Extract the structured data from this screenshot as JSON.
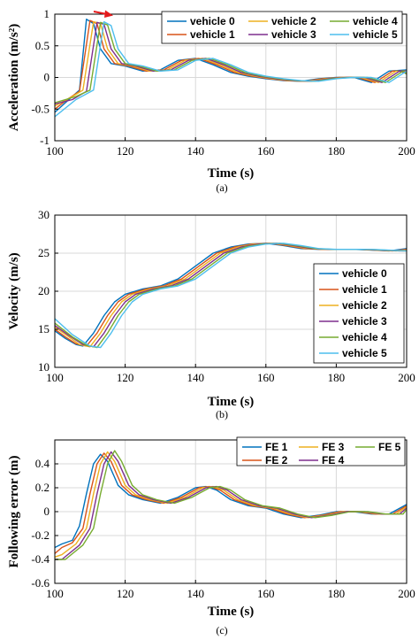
{
  "colors": [
    "#0072BD",
    "#D95319",
    "#EDB120",
    "#7E2F8E",
    "#77AC30",
    "#4DBEEE"
  ],
  "chart_data": [
    {
      "type": "line",
      "caption": "(a)",
      "xlabel": "Time (s)",
      "ylabel": "Acceleration (m/s²)",
      "xlim": [
        100,
        200
      ],
      "ylim": [
        -1,
        1
      ],
      "xticks": [
        "100",
        "120",
        "140",
        "160",
        "180",
        "200"
      ],
      "yticks": [
        "-1",
        "-0.5",
        "0",
        "0.5",
        "1"
      ],
      "grid": true,
      "legend_position": "top-right",
      "legend_columns": 3,
      "annotation": "red arrow pointing right",
      "series": [
        {
          "name": "vehicle 0",
          "x": [
            100,
            104,
            107,
            109,
            111,
            113,
            116,
            120,
            125,
            130,
            135,
            140,
            145,
            150,
            155,
            160,
            165,
            170,
            175,
            180,
            185,
            190,
            195,
            200
          ],
          "values": [
            -0.55,
            -0.35,
            -0.2,
            0.92,
            0.85,
            0.45,
            0.22,
            0.18,
            0.1,
            0.12,
            0.27,
            0.3,
            0.2,
            0.08,
            0.02,
            -0.02,
            -0.05,
            -0.06,
            -0.02,
            0.0,
            0.0,
            -0.08,
            0.1,
            0.12
          ]
        },
        {
          "name": "vehicle 1",
          "x": [
            100,
            104,
            107,
            110,
            112,
            114,
            117,
            121,
            126,
            131,
            136,
            141,
            146,
            151,
            156,
            161,
            166,
            171,
            176,
            181,
            186,
            191,
            196,
            200
          ],
          "values": [
            -0.5,
            -0.33,
            -0.22,
            0.9,
            0.85,
            0.45,
            0.22,
            0.18,
            0.1,
            0.12,
            0.27,
            0.3,
            0.2,
            0.08,
            0.02,
            -0.02,
            -0.05,
            -0.06,
            -0.02,
            0.0,
            0.0,
            -0.08,
            0.1,
            0.1
          ]
        },
        {
          "name": "vehicle 2",
          "x": [
            100,
            105,
            108,
            111,
            113,
            115,
            118,
            122,
            127,
            132,
            137,
            142,
            147,
            152,
            157,
            162,
            167,
            172,
            177,
            182,
            187,
            192,
            197,
            200
          ],
          "values": [
            -0.45,
            -0.3,
            -0.2,
            0.88,
            0.85,
            0.45,
            0.22,
            0.18,
            0.1,
            0.12,
            0.27,
            0.3,
            0.2,
            0.08,
            0.02,
            -0.02,
            -0.05,
            -0.06,
            -0.02,
            0.0,
            0.0,
            -0.08,
            0.1,
            0.08
          ]
        },
        {
          "name": "vehicle 3",
          "x": [
            100,
            105,
            109,
            112,
            114,
            116,
            119,
            123,
            128,
            133,
            138,
            143,
            148,
            153,
            158,
            163,
            168,
            173,
            178,
            183,
            188,
            193,
            198,
            200
          ],
          "values": [
            -0.42,
            -0.35,
            -0.22,
            0.87,
            0.84,
            0.45,
            0.22,
            0.18,
            0.1,
            0.12,
            0.27,
            0.3,
            0.2,
            0.08,
            0.02,
            -0.02,
            -0.05,
            -0.06,
            -0.02,
            0.0,
            0.0,
            -0.08,
            0.1,
            0.06
          ]
        },
        {
          "name": "vehicle 4",
          "x": [
            100,
            106,
            110,
            113,
            115,
            117,
            120,
            124,
            129,
            134,
            139,
            144,
            149,
            154,
            159,
            164,
            169,
            174,
            179,
            184,
            189,
            194,
            199,
            200
          ],
          "values": [
            -0.4,
            -0.3,
            -0.2,
            0.87,
            0.83,
            0.45,
            0.22,
            0.18,
            0.1,
            0.12,
            0.27,
            0.3,
            0.2,
            0.08,
            0.02,
            -0.02,
            -0.05,
            -0.06,
            -0.02,
            0.0,
            0.0,
            -0.08,
            0.1,
            0.05
          ]
        },
        {
          "name": "vehicle 5",
          "x": [
            100,
            106,
            111,
            114,
            116,
            118,
            121,
            125,
            130,
            135,
            140,
            145,
            150,
            155,
            160,
            165,
            170,
            175,
            180,
            185,
            190,
            195,
            200
          ],
          "values": [
            -0.62,
            -0.35,
            -0.2,
            0.88,
            0.82,
            0.45,
            0.22,
            0.18,
            0.1,
            0.12,
            0.27,
            0.3,
            0.2,
            0.08,
            0.02,
            -0.02,
            -0.05,
            -0.06,
            -0.02,
            0.0,
            0.0,
            -0.08,
            0.1
          ]
        }
      ]
    },
    {
      "type": "line",
      "caption": "(b)",
      "xlabel": "Time (s)",
      "ylabel": "Velocity (m/s)",
      "xlim": [
        100,
        200
      ],
      "ylim": [
        10,
        30
      ],
      "xticks": [
        "100",
        "120",
        "140",
        "160",
        "180",
        "200"
      ],
      "yticks": [
        "10",
        "15",
        "20",
        "25",
        "30"
      ],
      "grid": true,
      "legend_position": "bottom-right",
      "legend_columns": 1,
      "series": [
        {
          "name": "vehicle 0",
          "x": [
            100,
            103,
            106,
            108,
            111,
            114,
            117,
            120,
            125,
            130,
            135,
            140,
            145,
            150,
            155,
            160,
            165,
            170,
            175,
            180,
            185,
            190,
            195,
            200
          ],
          "values": [
            14.8,
            13.8,
            13.0,
            12.8,
            14.5,
            16.8,
            18.6,
            19.6,
            20.3,
            20.7,
            21.6,
            23.3,
            25.0,
            25.8,
            26.2,
            26.3,
            26.0,
            25.6,
            25.5,
            25.5,
            25.5,
            25.4,
            25.3,
            25.6
          ]
        },
        {
          "name": "vehicle 1",
          "x": [
            100,
            103,
            106,
            109,
            112,
            115,
            118,
            121,
            126,
            131,
            136,
            141,
            146,
            151,
            156,
            161,
            166,
            171,
            176,
            181,
            186,
            191,
            196,
            200
          ],
          "values": [
            15.0,
            14.0,
            13.1,
            12.8,
            14.5,
            16.8,
            18.6,
            19.6,
            20.3,
            20.7,
            21.6,
            23.3,
            25.0,
            25.8,
            26.2,
            26.3,
            26.0,
            25.6,
            25.5,
            25.5,
            25.5,
            25.4,
            25.3,
            25.5
          ]
        },
        {
          "name": "vehicle 2",
          "x": [
            100,
            104,
            107,
            110,
            113,
            116,
            119,
            122,
            127,
            132,
            137,
            142,
            147,
            152,
            157,
            162,
            167,
            172,
            177,
            182,
            187,
            192,
            197,
            200
          ],
          "values": [
            15.3,
            14.0,
            13.0,
            12.7,
            14.5,
            16.8,
            18.6,
            19.6,
            20.3,
            20.7,
            21.6,
            23.3,
            25.0,
            25.8,
            26.2,
            26.3,
            26.0,
            25.6,
            25.5,
            25.5,
            25.5,
            25.4,
            25.3,
            25.4
          ]
        },
        {
          "name": "vehicle 3",
          "x": [
            100,
            104,
            108,
            111,
            114,
            117,
            120,
            123,
            128,
            133,
            138,
            143,
            148,
            153,
            158,
            163,
            168,
            173,
            178,
            183,
            188,
            193,
            198,
            200
          ],
          "values": [
            15.5,
            14.2,
            13.0,
            12.7,
            14.5,
            16.8,
            18.6,
            19.6,
            20.3,
            20.7,
            21.6,
            23.3,
            25.0,
            25.8,
            26.2,
            26.3,
            26.0,
            25.6,
            25.5,
            25.5,
            25.5,
            25.4,
            25.3,
            25.3
          ]
        },
        {
          "name": "vehicle 4",
          "x": [
            100,
            105,
            109,
            112,
            115,
            118,
            121,
            124,
            129,
            134,
            139,
            144,
            149,
            154,
            159,
            164,
            169,
            174,
            179,
            184,
            189,
            194,
            199,
            200
          ],
          "values": [
            15.8,
            14.0,
            12.9,
            12.6,
            14.5,
            16.8,
            18.6,
            19.6,
            20.3,
            20.7,
            21.6,
            23.3,
            25.0,
            25.8,
            26.2,
            26.3,
            26.0,
            25.6,
            25.5,
            25.5,
            25.5,
            25.4,
            25.3,
            25.3
          ]
        },
        {
          "name": "vehicle 5",
          "x": [
            100,
            105,
            110,
            113,
            116,
            119,
            122,
            125,
            130,
            135,
            140,
            145,
            150,
            155,
            160,
            165,
            170,
            175,
            180,
            185,
            190,
            195,
            200
          ],
          "values": [
            16.4,
            14.3,
            12.8,
            12.6,
            14.5,
            16.8,
            18.6,
            19.6,
            20.3,
            20.7,
            21.6,
            23.3,
            25.0,
            25.8,
            26.2,
            26.3,
            26.0,
            25.6,
            25.5,
            25.5,
            25.5,
            25.4,
            25.3
          ]
        }
      ]
    },
    {
      "type": "line",
      "caption": "(c)",
      "xlabel": "Time (s)",
      "ylabel": "Following error (m)",
      "xlim": [
        100,
        200
      ],
      "ylim": [
        -0.6,
        0.6
      ],
      "xticks": [
        "100",
        "120",
        "140",
        "160",
        "180",
        "200"
      ],
      "yticks": [
        "-0.6",
        "-0.4",
        "-0.2",
        "0",
        "0.2",
        "0.4"
      ],
      "grid": true,
      "legend_position": "top-right",
      "legend_columns": 3,
      "color_offset": 0,
      "series": [
        {
          "name": "FE 1",
          "x": [
            100,
            102,
            105,
            107,
            109,
            111,
            113,
            115,
            118,
            121,
            125,
            130,
            135,
            140,
            143,
            146,
            150,
            155,
            160,
            165,
            170,
            175,
            180,
            185,
            190,
            195,
            200
          ],
          "values": [
            -0.3,
            -0.27,
            -0.24,
            -0.12,
            0.15,
            0.4,
            0.48,
            0.42,
            0.22,
            0.14,
            0.1,
            0.07,
            0.12,
            0.2,
            0.21,
            0.18,
            0.1,
            0.05,
            0.03,
            -0.02,
            -0.05,
            -0.03,
            0.0,
            0.0,
            -0.02,
            -0.02,
            0.06
          ]
        },
        {
          "name": "FE 2",
          "x": [
            100,
            102,
            105,
            108,
            110,
            112,
            114,
            116,
            119,
            122,
            126,
            131,
            136,
            141,
            144,
            147,
            151,
            156,
            161,
            166,
            171,
            176,
            181,
            186,
            191,
            196,
            200
          ],
          "values": [
            -0.35,
            -0.3,
            -0.26,
            -0.14,
            0.15,
            0.4,
            0.49,
            0.42,
            0.22,
            0.14,
            0.1,
            0.07,
            0.12,
            0.2,
            0.21,
            0.18,
            0.1,
            0.05,
            0.03,
            -0.02,
            -0.05,
            -0.03,
            0.0,
            0.0,
            -0.02,
            -0.02,
            0.05
          ]
        },
        {
          "name": "FE 3",
          "x": [
            100,
            102,
            106,
            109,
            111,
            113,
            115,
            117,
            120,
            123,
            127,
            132,
            137,
            142,
            145,
            148,
            152,
            157,
            162,
            167,
            172,
            177,
            182,
            187,
            192,
            197,
            200
          ],
          "values": [
            -0.38,
            -0.36,
            -0.27,
            -0.14,
            0.15,
            0.4,
            0.5,
            0.42,
            0.22,
            0.14,
            0.1,
            0.07,
            0.12,
            0.2,
            0.21,
            0.18,
            0.1,
            0.05,
            0.03,
            -0.02,
            -0.05,
            -0.03,
            0.0,
            0.0,
            -0.02,
            -0.02,
            0.04
          ]
        },
        {
          "name": "FE 4",
          "x": [
            100,
            102,
            107,
            110,
            112,
            114,
            116,
            118,
            121,
            124,
            128,
            133,
            138,
            143,
            146,
            149,
            153,
            158,
            163,
            168,
            173,
            178,
            183,
            188,
            193,
            198,
            200
          ],
          "values": [
            -0.4,
            -0.4,
            -0.28,
            -0.14,
            0.15,
            0.4,
            0.5,
            0.42,
            0.22,
            0.14,
            0.1,
            0.07,
            0.12,
            0.2,
            0.21,
            0.18,
            0.1,
            0.05,
            0.03,
            -0.02,
            -0.05,
            -0.03,
            0.0,
            0.0,
            -0.02,
            -0.02,
            0.03
          ]
        },
        {
          "name": "FE 5",
          "x": [
            100,
            103,
            108,
            111,
            113,
            115,
            117,
            119,
            122,
            125,
            129,
            134,
            139,
            144,
            147,
            150,
            154,
            159,
            164,
            169,
            174,
            179,
            184,
            189,
            194,
            199,
            200
          ],
          "values": [
            -0.4,
            -0.4,
            -0.28,
            -0.14,
            0.15,
            0.4,
            0.51,
            0.42,
            0.22,
            0.14,
            0.1,
            0.07,
            0.12,
            0.2,
            0.21,
            0.18,
            0.1,
            0.05,
            0.03,
            -0.02,
            -0.05,
            -0.03,
            0.0,
            0.0,
            -0.02,
            -0.02,
            0.02
          ]
        }
      ]
    }
  ]
}
